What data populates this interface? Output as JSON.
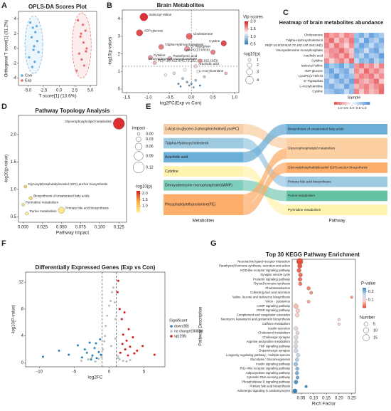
{
  "chart_data": [
    {
      "panel": "A",
      "type": "scatter",
      "title": "OPLS-DA Scores Plot",
      "xlabel": "T score[1] (13.6%)",
      "ylabel": "Orthogonal T score[1] (31.2%)",
      "xlim": [
        -6.5,
        6
      ],
      "ylim": [
        -5,
        5
      ],
      "xticks": [
        {
          "value": -5,
          "label": "-5.0"
        },
        -2.5,
        {
          "value": 0,
          "label": "0.0"
        },
        2.5,
        {
          "value": 5,
          "label": "5.0"
        }
      ],
      "yticks": [
        -4,
        -2,
        0,
        2,
        4
      ],
      "legend": "bottom-left",
      "series": [
        {
          "name": "Con",
          "color": "#5aa9e6",
          "x": [
            -4.6,
            -4.2,
            -3.8,
            -4.4,
            -3.5,
            -4.0,
            -3.3,
            -4.8,
            -3.9,
            -4.3,
            -3.6,
            -4.1
          ],
          "values": [
            3.5,
            2.8,
            2.2,
            1.5,
            1.0,
            0.3,
            -0.5,
            -1.2,
            -1.8,
            -2.5,
            3.0,
            -0.2
          ]
        },
        {
          "name": "Exp",
          "color": "#e86a6a",
          "x": [
            3.0,
            3.8,
            4.2,
            3.4,
            3.9,
            4.4,
            3.2,
            3.6,
            4.0,
            2.8,
            3.5,
            4.3
          ],
          "values": [
            3.8,
            3.2,
            2.4,
            1.6,
            0.8,
            0.0,
            -0.7,
            -1.5,
            -2.3,
            -3.0,
            2.0,
            -0.4
          ]
        }
      ]
    },
    {
      "panel": "B",
      "type": "bubble",
      "title": "Brain Metabolites",
      "xlabel": "log2FC(Exp vs Con)",
      "ylabel": "-log10(p-value)",
      "xlim": [
        -1.6,
        1.1
      ],
      "ylim": [
        -0.2,
        4.5
      ],
      "xticks": [
        -1.5,
        {
          "value": -1,
          "label": "-1.0"
        },
        -0.5,
        {
          "value": 0,
          "label": "0.0"
        },
        0.5,
        {
          "value": 1,
          "label": "1.0"
        }
      ],
      "yticks": [
        0,
        1,
        2,
        3,
        4
      ],
      "thresholds_x": [
        0
      ],
      "threshold_y": 1.3,
      "labels": [
        "Isoleucyl-Valine",
        "ADP-glucose",
        "Cholesterone",
        "7alpha-Hydroxycholesterol",
        "D-Tryptophan",
        "Cystine",
        "LysoPC(17:0/0:0)",
        "Cytidine",
        "Pantothenic acid",
        "PE(P-16:0/22:6(4Z,7Z,10Z,13Z,16Z,19Z))",
        "Deoxyadenosine monophosphate",
        "Arachidic acid",
        "L-Acetylcarnitine",
        null,
        null,
        null,
        null,
        null,
        null,
        null,
        null,
        null,
        null,
        null,
        null,
        null,
        null,
        null
      ],
      "x": [
        -1.1,
        -1.2,
        -0.05,
        -0.7,
        -0.1,
        0.75,
        0.5,
        -0.95,
        -0.5,
        -0.85,
        0.2,
        0.1,
        0.8,
        -0.4,
        -0.2,
        -0.1,
        0.0,
        0.1,
        0.2,
        -0.3,
        -0.6,
        0.3,
        0.15,
        -0.15,
        0.05,
        -0.05,
        0.4,
        -0.25
      ],
      "values": [
        4.1,
        3.2,
        3.0,
        2.4,
        2.3,
        2.6,
        2.1,
        1.8,
        1.75,
        1.5,
        1.6,
        1.3,
        0.9,
        0.9,
        0.6,
        0.4,
        0.3,
        0.5,
        0.2,
        0.3,
        0.8,
        0.7,
        1.0,
        1.1,
        0.1,
        0.2,
        1.0,
        0.15
      ],
      "vip": [
        2.0,
        1.9,
        1.8,
        1.7,
        1.6,
        1.9,
        1.7,
        1.6,
        1.5,
        1.5,
        1.6,
        1.4,
        1.5,
        1.1,
        0.9,
        0.7,
        0.6,
        0.8,
        0.5,
        0.6,
        1.2,
        1.0,
        1.2,
        1.2,
        0.5,
        0.6,
        1.3,
        0.5
      ],
      "size_key": "values",
      "color_key": "vip",
      "ctitle": "Vip scores",
      "clim": [
        0.5,
        2.0
      ],
      "colors": [
        "#2c7bb6",
        "#f7f7f7",
        "#d7191c"
      ],
      "cticks": [
        0.5,
        {
          "value": 1,
          "label": "1.0"
        },
        1.5,
        {
          "value": 2,
          "label": "2.0"
        }
      ],
      "stitle": "-log10(p)",
      "sticks": [
        1,
        2,
        3,
        4
      ]
    },
    {
      "panel": "C",
      "type": "heatmap",
      "title": "Heatmap of brain metabolites abundance",
      "xlabel": "Sample",
      "rows": [
        "Cholesterone",
        "7alpha-Hydroxycholesterol",
        "PE(P-16:0/22:6(4Z,7Z,10Z,13Z,16Z,19Z))",
        "Deoxyadenosine monophosphate",
        "Arachidic acid",
        "Cytidine",
        "Isoleucyl-Valine",
        "ADP-glucose",
        "LysoPC(17:0/0:0)",
        "D-Tryptophan",
        "L-Acetylcarnitine",
        "Cystine"
      ],
      "values": [
        [
          1.2,
          0.8,
          1.0,
          0.6,
          1.1,
          0.9,
          -0.8,
          -1.1,
          -0.6,
          -1.2,
          -0.9,
          -0.7
        ],
        [
          0.9,
          1.3,
          0.5,
          1.0,
          0.7,
          1.2,
          -1.0,
          -0.5,
          -1.3,
          -0.8,
          -0.6,
          -1.1
        ],
        [
          1.1,
          0.6,
          1.2,
          0.8,
          0.4,
          1.0,
          -0.7,
          -1.2,
          -0.9,
          -0.5,
          -1.0,
          -0.8
        ],
        [
          0.7,
          1.0,
          0.9,
          1.3,
          0.8,
          0.5,
          -1.1,
          -0.9,
          -0.4,
          -1.0,
          -1.2,
          -0.6
        ],
        [
          0.5,
          0.9,
          1.1,
          0.7,
          1.2,
          0.6,
          -0.9,
          -0.6,
          -1.1,
          -0.7,
          -0.8,
          -1.3
        ],
        [
          1.0,
          0.4,
          0.8,
          1.1,
          0.6,
          1.3,
          -0.5,
          -1.0,
          -0.8,
          -1.2,
          -0.6,
          -0.9
        ],
        [
          -1.1,
          -0.7,
          -0.9,
          -1.2,
          -0.6,
          -1.0,
          0.9,
          1.2,
          0.7,
          1.0,
          0.5,
          1.1
        ],
        [
          -0.8,
          -1.2,
          -0.6,
          -0.9,
          -1.1,
          -0.5,
          1.0,
          0.6,
          1.3,
          0.8,
          1.1,
          0.7
        ],
        [
          -0.6,
          -0.9,
          -1.3,
          -0.7,
          -1.0,
          -0.8,
          0.7,
          1.1,
          0.9,
          1.2,
          0.6,
          1.0
        ],
        [
          -1.0,
          -0.5,
          -0.8,
          -1.1,
          -0.7,
          -1.2,
          1.2,
          0.8,
          0.6,
          0.9,
          1.3,
          0.5
        ],
        [
          -0.9,
          -1.1,
          -0.7,
          -0.6,
          -1.2,
          -0.8,
          0.6,
          0.9,
          1.1,
          0.7,
          1.0,
          1.2
        ],
        [
          -0.7,
          -0.8,
          -1.1,
          -1.0,
          -0.5,
          -0.9,
          1.1,
          0.5,
          1.0,
          0.6,
          0.8,
          1.3
        ]
      ],
      "clim": [
        -1.5,
        1.5
      ],
      "colors": [
        "#4a90d9",
        "#ffffff",
        "#e8555a"
      ],
      "cticks": [
        {
          "value": 1,
          "label": "1.0"
        },
        0.5,
        {
          "value": 0,
          "label": "0.0"
        },
        -0.5,
        {
          "value": -1,
          "label": "-1.0"
        }
      ]
    },
    {
      "panel": "D",
      "type": "bubble",
      "title": "Pathway Topology Analysis",
      "xlabel": "Pathway Impact",
      "ylabel": "-log10(p-value)",
      "xlim": [
        -0.006,
        0.135
      ],
      "ylim": [
        0.4,
        2.35
      ],
      "xticks": [
        {
          "value": 0,
          "label": "0.000"
        },
        0.025,
        {
          "value": 0.05,
          "label": "0.050"
        },
        0.075,
        {
          "value": 0.1,
          "label": "0.100"
        },
        0.125
      ],
      "yticks": [
        0.5,
        {
          "value": 1,
          "label": "1.0"
        },
        1.5,
        {
          "value": 2,
          "label": "2.0"
        }
      ],
      "labels": [
        "Glycerophospholipid metabolism",
        "Glycosylphosphatidylinositol (GPI)-anchor biosynthesis",
        "Biosynthesis of unsaturated fatty acids",
        "Pyrimidine metabolism",
        "Purine metabolism",
        "Primary bile acid biosynthesis"
      ],
      "x": [
        0.125,
        0.003,
        0.01,
        0.0,
        0.005,
        0.05
      ],
      "values": [
        2.2,
        1.05,
        0.84,
        0.72,
        0.56,
        0.62
      ],
      "size_key": "x",
      "color_key": "values",
      "ctitle": "-log10(p)",
      "clim": [
        0.5,
        2.2
      ],
      "colors": [
        "#ffef8a",
        "#fdae3b",
        "#d7191c"
      ],
      "cticks": [
        {
          "value": 1,
          "label": "1.0"
        },
        1.5,
        {
          "value": 2,
          "label": "2.0"
        }
      ],
      "stitle": "Impact",
      "sticks": [
        {
          "value": 0,
          "label": "0.00"
        },
        0.03,
        0.06,
        0.09,
        0.12
      ]
    },
    {
      "panel": "E",
      "type": "sankey",
      "left_label": "Metabolites",
      "right_label": "Pathway",
      "left": [
        {
          "name": "1-Acyl-sn-glycero-3-phosphocholine(LysoPC)",
          "color": "#f8cfa6"
        },
        {
          "name": "7alpha-Hydroxycholesterol",
          "color": "#9ecae1"
        },
        {
          "name": "Arachidic acid",
          "color": "#6baed6"
        },
        {
          "name": "Cytidine",
          "color": "#fff3b0"
        },
        {
          "name": "Deoxyadenosine monophosphate(dAMP)",
          "color": "#7fcdbb"
        },
        {
          "name": "Phosphatidylethanolamine(PE)",
          "color": "#fdae6b"
        }
      ],
      "right": [
        {
          "name": "Biosynthesis of unsaturated fatty acids",
          "color": "#6baed6"
        },
        {
          "name": "Glycerophospholipid metabolism",
          "color": "#fdd0a2"
        },
        {
          "name": "Glycosylphosphatidylinositol (GPI)-anchor biosynthesis",
          "color": "#fdae6b"
        },
        {
          "name": "Primary bile acid biosynthesis",
          "color": "#9ecae1"
        },
        {
          "name": "Purine metabolism",
          "color": "#66c2a4"
        },
        {
          "name": "Pyrimidine metabolism",
          "color": "#fff3b0"
        }
      ],
      "links": [
        {
          "source": 0,
          "target": 1,
          "value": 1
        },
        {
          "source": 1,
          "target": 3,
          "value": 1
        },
        {
          "source": 2,
          "target": 0,
          "value": 1
        },
        {
          "source": 3,
          "target": 5,
          "value": 1
        },
        {
          "source": 4,
          "target": 4,
          "value": 1
        },
        {
          "source": 5,
          "target": 1,
          "value": 1
        },
        {
          "source": 5,
          "target": 2,
          "value": 1
        }
      ]
    },
    {
      "panel": "F",
      "type": "volcano",
      "title": "Differentially Expressed Genes (Exp vs Con)",
      "xlabel": "log2FC",
      "ylabel": "-log10(P-value)",
      "xlim": [
        -12,
        8
      ],
      "ylim": [
        -0.6,
        13.5
      ],
      "xticks": [
        -10,
        -5,
        0,
        5
      ],
      "yticks": [
        0,
        4,
        8,
        12
      ],
      "thresholds_x": [
        -1,
        1
      ],
      "legend_title": "Significant",
      "series": [
        {
          "name": "down(98)",
          "color": "#2b83ba",
          "x": [
            -9.5,
            -7.2,
            -5.8,
            -4.5,
            -3.9,
            -3.2,
            -2.8,
            -2.4,
            -2.1,
            -1.8,
            -1.5,
            -1.3,
            -2.6,
            -1.9,
            -3.5,
            -1.2
          ],
          "values": [
            0.9,
            1.8,
            1.2,
            2.6,
            0.8,
            1.5,
            3.0,
            1.1,
            2.2,
            0.7,
            1.6,
            3.5,
            0.5,
            2.9,
            2.0,
            1.2
          ]
        },
        {
          "name": "no change(36884)",
          "color": "#bdbdbd",
          "x": [
            -4,
            -3,
            -2.5,
            -2,
            -1.5,
            -0.9,
            -0.7,
            -0.5,
            -0.3,
            0,
            0.2,
            0.4,
            0.6,
            0.8,
            0.9,
            1.2,
            1.5,
            2,
            2.5,
            3,
            -0.6,
            0.3,
            0.9,
            -1.1,
            1.3
          ],
          "values": [
            0.3,
            0.5,
            0.8,
            0.2,
            0.6,
            2.0,
            3.2,
            5.5,
            7.0,
            8.5,
            9.2,
            10.5,
            11.2,
            9.0,
            6.5,
            1.0,
            0.5,
            0.3,
            0.2,
            0.4,
            4.0,
            2.5,
            3.6,
            0.9,
            0.7
          ]
        },
        {
          "name": "up(198)",
          "color": "#d7191c",
          "x": [
            1.2,
            1.5,
            1.8,
            2.0,
            2.2,
            2.5,
            2.8,
            3.0,
            3.4,
            4.0,
            4.8,
            6.5,
            1.6,
            2.3,
            1.3,
            2.7,
            1.9,
            3.6
          ],
          "values": [
            10.5,
            8.0,
            6.5,
            4.2,
            7.5,
            3.3,
            5.0,
            2.4,
            3.8,
            1.8,
            2.5,
            1.2,
            1.5,
            2.0,
            12.2,
            1.1,
            2.8,
            1.4
          ]
        }
      ]
    },
    {
      "panel": "G",
      "type": "dot",
      "title": "Top 30 KEGG Pathway Enrichment",
      "xlabel": "Rich Factor",
      "ylabel": "Pathway Description",
      "xlim": [
        0.015,
        0.265
      ],
      "xticks": [
        0.05,
        {
          "value": 0.1,
          "label": "0.10"
        },
        0.15,
        {
          "value": 0.2,
          "label": "0.20"
        },
        0.25
      ],
      "categories": [
        "Neuroactive ligand-receptor interaction",
        "Parathyroid hormone synthesis, secretion and action",
        "NOD-like receptor signaling pathway",
        "Synaptic vesicle cycle",
        "Prolactin signaling pathway",
        "Thyroid hormone synthesis",
        "Phototransduction",
        "Collecting duct acid secretion",
        "Valine, leucine and isoleucine biosynthesis",
        "Virion - Lyssavirus",
        "cAMP signaling pathway",
        "PPAR signaling pathway",
        "Complement and coagulation cascades",
        "Neomycin, kanamycin and gentamicin biosynthesis",
        "Caffeine metabolism",
        "Insulin secretion",
        "Cholesterol metabolism",
        "Cholinergic synapse",
        "Arginine and proline metabolism",
        "TNF signaling pathway",
        "Dopaminergic synapse",
        "Longevity regulating pathway - multiple species",
        "Glycolysis / Gluconeogenesis",
        "Insulin signaling pathway",
        "RIG-I-like receptor signaling pathway",
        "Adipocytokine signaling pathway",
        "Cytosolic DNA-sensing pathway",
        "Phospholipase D signaling pathway",
        "Primary bile acid biosynthesis",
        "Adrenergic signaling in cardiomyocytes"
      ],
      "values": [
        0.045,
        0.045,
        0.042,
        0.048,
        0.046,
        0.047,
        0.08,
        0.09,
        0.25,
        0.08,
        0.03,
        0.037,
        0.035,
        0.2,
        0.2,
        0.03,
        0.036,
        0.03,
        0.031,
        0.029,
        0.03,
        0.038,
        0.034,
        0.029,
        0.035,
        0.034,
        0.036,
        0.03,
        0.07,
        0.026
      ],
      "pvalue": [
        0.005,
        0.01,
        0.02,
        0.02,
        0.025,
        0.03,
        0.04,
        0.045,
        0.05,
        0.06,
        0.07,
        0.08,
        0.09,
        0.09,
        0.1,
        0.11,
        0.12,
        0.13,
        0.14,
        0.15,
        0.16,
        0.17,
        0.18,
        0.19,
        0.2,
        0.21,
        0.22,
        0.23,
        0.24,
        0.25
      ],
      "number": [
        15,
        6,
        5,
        4,
        4,
        3,
        3,
        2,
        1,
        2,
        6,
        4,
        4,
        1,
        1,
        4,
        3,
        4,
        3,
        4,
        4,
        3,
        3,
        4,
        3,
        3,
        2,
        4,
        1,
        5
      ],
      "ctitle": "P-value",
      "clim": [
        0,
        0.25
      ],
      "colors": [
        "#e34a33",
        "#fdd0c7",
        "#c6dbef",
        "#3182bd"
      ],
      "cticks": [
        0.1,
        0.2
      ],
      "stitle": "Number",
      "sticks": [
        5,
        10,
        15
      ]
    }
  ]
}
